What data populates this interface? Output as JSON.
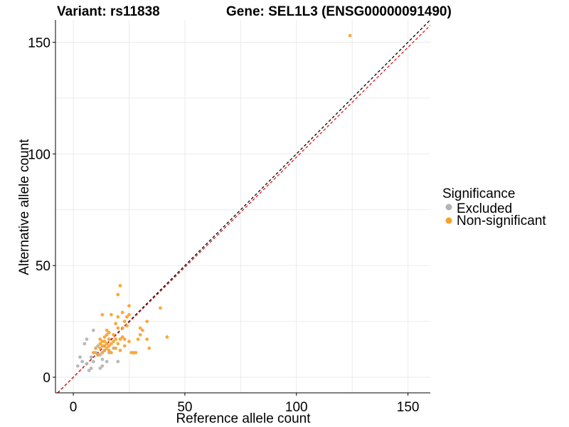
{
  "chart_data": {
    "type": "scatter",
    "title_left": "Variant: rs11838",
    "title_right": "Gene: SEL1L3 (ENSG00000091490)",
    "xlabel": "Reference allele count",
    "ylabel": "Alternative allele count",
    "xlim": [
      -8,
      160
    ],
    "ylim": [
      -7,
      160
    ],
    "xticks": [
      0,
      50,
      100,
      150
    ],
    "yticks": [
      0,
      50,
      100,
      150
    ],
    "grid": true,
    "legend": {
      "title": "Significance",
      "position": "right",
      "entries": [
        {
          "label": "Excluded",
          "color": "#b3b3b3"
        },
        {
          "label": "Non-significant",
          "color": "#f7a12b"
        }
      ]
    },
    "reference_lines": [
      {
        "slope": 1.0,
        "intercept": 0,
        "color": "#000000",
        "style": "dashed"
      },
      {
        "slope": 0.985,
        "intercept": 0,
        "color": "#e8141b",
        "style": "dashed"
      }
    ],
    "series": [
      {
        "name": "Excluded",
        "color": "#b3b3b3",
        "points": [
          [
            2,
            5
          ],
          [
            3,
            9
          ],
          [
            4,
            7
          ],
          [
            5,
            15
          ],
          [
            6,
            17
          ],
          [
            6,
            6
          ],
          [
            7,
            3
          ],
          [
            8,
            4
          ],
          [
            8,
            9
          ],
          [
            9,
            21
          ],
          [
            9,
            7
          ],
          [
            10,
            11
          ],
          [
            11,
            10
          ],
          [
            11,
            14
          ],
          [
            12,
            10
          ],
          [
            12,
            4
          ],
          [
            13,
            5
          ],
          [
            13,
            8
          ],
          [
            14,
            12
          ],
          [
            15,
            7
          ],
          [
            16,
            11
          ],
          [
            18,
            13
          ],
          [
            20,
            7
          ]
        ]
      },
      {
        "name": "Non-significant",
        "color": "#f7a12b",
        "points": [
          [
            9,
            11
          ],
          [
            10,
            13
          ],
          [
            11,
            10
          ],
          [
            12,
            15
          ],
          [
            12,
            17
          ],
          [
            12,
            13
          ],
          [
            13,
            11
          ],
          [
            13,
            14
          ],
          [
            13,
            28
          ],
          [
            13,
            16
          ],
          [
            14,
            12
          ],
          [
            14,
            14
          ],
          [
            14,
            16
          ],
          [
            14,
            18
          ],
          [
            15,
            13
          ],
          [
            15,
            15
          ],
          [
            15,
            19
          ],
          [
            15,
            21
          ],
          [
            16,
            12
          ],
          [
            16,
            14
          ],
          [
            16,
            17
          ],
          [
            16,
            20
          ],
          [
            17,
            11
          ],
          [
            17,
            15
          ],
          [
            17,
            28
          ],
          [
            18,
            16
          ],
          [
            18,
            19
          ],
          [
            19,
            13
          ],
          [
            19,
            17
          ],
          [
            19,
            24
          ],
          [
            20,
            15
          ],
          [
            20,
            22
          ],
          [
            20,
            27
          ],
          [
            20,
            37
          ],
          [
            21,
            41
          ],
          [
            21,
            12
          ],
          [
            21,
            17
          ],
          [
            22,
            18
          ],
          [
            22,
            22
          ],
          [
            22,
            29
          ],
          [
            23,
            25
          ],
          [
            23,
            14
          ],
          [
            23,
            17
          ],
          [
            24,
            23
          ],
          [
            24,
            27
          ],
          [
            25,
            28
          ],
          [
            25,
            32
          ],
          [
            25,
            16
          ],
          [
            26,
            11
          ],
          [
            27,
            11
          ],
          [
            28,
            11
          ],
          [
            29,
            17
          ],
          [
            30,
            22
          ],
          [
            30,
            19
          ],
          [
            31,
            21
          ],
          [
            33,
            25
          ],
          [
            33,
            17
          ],
          [
            34,
            13
          ],
          [
            39,
            31
          ],
          [
            42,
            18
          ],
          [
            124,
            153
          ]
        ]
      }
    ]
  }
}
